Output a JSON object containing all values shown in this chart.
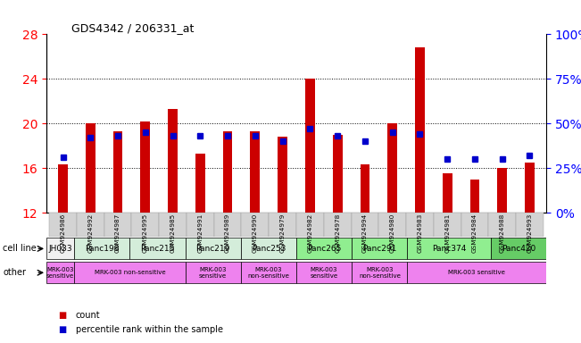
{
  "title": "GDS4342 / 206331_at",
  "samples": [
    "GSM924986",
    "GSM924992",
    "GSM924987",
    "GSM924995",
    "GSM924985",
    "GSM924991",
    "GSM924989",
    "GSM924990",
    "GSM924979",
    "GSM924982",
    "GSM924978",
    "GSM924994",
    "GSM924980",
    "GSM924983",
    "GSM924981",
    "GSM924984",
    "GSM924988",
    "GSM924993"
  ],
  "counts": [
    16.3,
    20.0,
    19.3,
    20.2,
    21.3,
    17.3,
    19.3,
    19.3,
    18.8,
    24.0,
    19.0,
    16.3,
    20.0,
    26.8,
    15.5,
    15.0,
    16.0,
    16.5
  ],
  "percentiles": [
    31,
    42,
    43,
    45,
    43,
    43,
    43,
    43,
    40,
    47,
    43,
    40,
    45,
    44,
    30,
    30,
    30,
    32
  ],
  "cell_lines": [
    {
      "name": "JH033",
      "start": 0,
      "end": 1,
      "color": "#f0f0f0"
    },
    {
      "name": "Panc198",
      "start": 1,
      "end": 3,
      "color": "#d4edda"
    },
    {
      "name": "Panc215",
      "start": 3,
      "end": 5,
      "color": "#d4edda"
    },
    {
      "name": "Panc219",
      "start": 5,
      "end": 7,
      "color": "#d4edda"
    },
    {
      "name": "Panc253",
      "start": 7,
      "end": 9,
      "color": "#d4edda"
    },
    {
      "name": "Panc265",
      "start": 9,
      "end": 11,
      "color": "#90ee90"
    },
    {
      "name": "Panc291",
      "start": 11,
      "end": 13,
      "color": "#90ee90"
    },
    {
      "name": "Panc374",
      "start": 13,
      "end": 16,
      "color": "#90ee90"
    },
    {
      "name": "Panc420",
      "start": 16,
      "end": 18,
      "color": "#66cc66"
    }
  ],
  "other_annotations": [
    {
      "label": "MRK-003\nsensitive",
      "start": 0,
      "end": 1,
      "color": "#ee82ee"
    },
    {
      "label": "MRK-003 non-sensitive",
      "start": 1,
      "end": 5,
      "color": "#ee82ee"
    },
    {
      "label": "MRK-003\nsensitive",
      "start": 5,
      "end": 7,
      "color": "#ee82ee"
    },
    {
      "label": "MRK-003\nnon-sensitive",
      "start": 7,
      "end": 9,
      "color": "#ee82ee"
    },
    {
      "label": "MRK-003\nsensitive",
      "start": 9,
      "end": 11,
      "color": "#ee82ee"
    },
    {
      "label": "MRK-003\nnon-sensitive",
      "start": 11,
      "end": 13,
      "color": "#ee82ee"
    },
    {
      "label": "MRK-003 sensitive",
      "start": 13,
      "end": 18,
      "color": "#ee82ee"
    }
  ],
  "ylim_left": [
    12,
    28
  ],
  "yticks_left": [
    12,
    16,
    20,
    24,
    28
  ],
  "ylim_right": [
    0,
    100
  ],
  "yticks_right": [
    0,
    25,
    50,
    75,
    100
  ],
  "bar_color": "#cc0000",
  "dot_color": "#0000cc",
  "bar_bottom": 12,
  "legend_items": [
    {
      "label": "count",
      "color": "#cc0000"
    },
    {
      "label": "percentile rank within the sample",
      "color": "#0000cc"
    }
  ],
  "row_label_cell": "cell line",
  "row_label_other": "other",
  "background_color": "#ffffff",
  "grid_color": "#000000"
}
